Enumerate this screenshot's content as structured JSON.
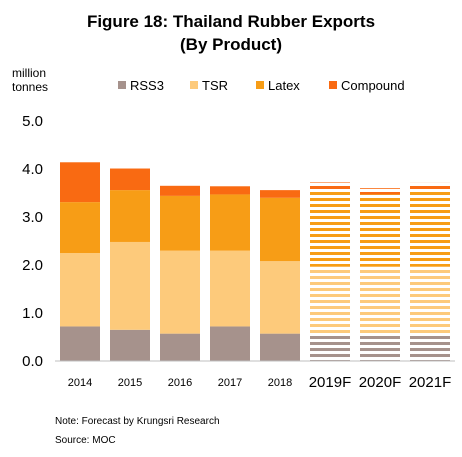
{
  "chart_data": {
    "type": "bar",
    "stacked": true,
    "title_line1": "Figure 18: Thailand Rubber Exports",
    "title_line2": "(By Product)",
    "ylabel_line1": "million",
    "ylabel_line2": "tonnes",
    "ylim": [
      0,
      5
    ],
    "yticks": [
      "0.0",
      "1.0",
      "2.0",
      "3.0",
      "4.0",
      "5.0"
    ],
    "ytick_values": [
      0,
      1,
      2,
      3,
      4,
      5
    ],
    "categories": [
      "2014",
      "2015",
      "2016",
      "2017",
      "2018",
      "2019F",
      "2020F",
      "2021F"
    ],
    "forecast": [
      false,
      false,
      false,
      false,
      false,
      true,
      true,
      true
    ],
    "series": [
      {
        "name": "RSS3",
        "color": "#a6928c",
        "values": [
          0.72,
          0.65,
          0.57,
          0.72,
          0.57,
          0.57,
          0.57,
          0.57
        ]
      },
      {
        "name": "TSR",
        "color": "#fdca7b",
        "values": [
          1.53,
          1.83,
          1.73,
          1.58,
          1.51,
          1.4,
          1.4,
          1.4
        ]
      },
      {
        "name": "Latex",
        "color": "#f79d16",
        "values": [
          1.06,
          1.08,
          1.14,
          1.17,
          1.32,
          1.6,
          1.5,
          1.6
        ]
      },
      {
        "name": "Compound",
        "color": "#f96a12",
        "values": [
          0.83,
          0.45,
          0.21,
          0.17,
          0.16,
          0.15,
          0.13,
          0.14
        ]
      }
    ],
    "legend_position": "top",
    "grid": false,
    "note": "Note: Forecast by Krungsri Research",
    "source": "Source:  MOC"
  }
}
